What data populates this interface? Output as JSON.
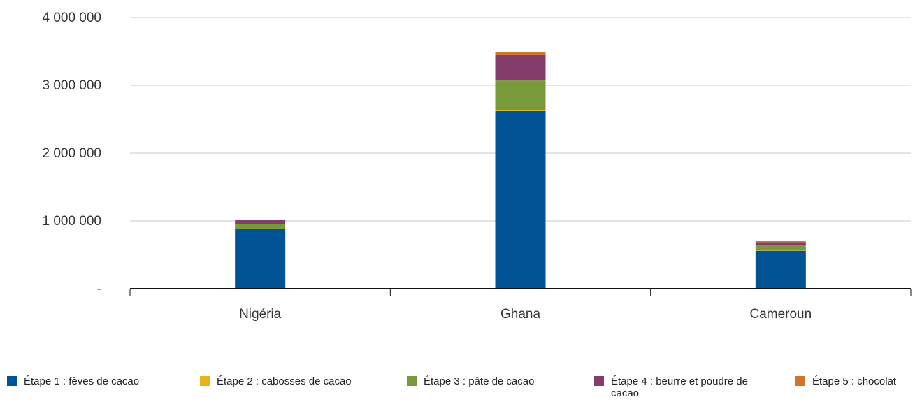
{
  "chart_data": {
    "type": "bar",
    "stacked": true,
    "categories": [
      "Nigéria",
      "Ghana",
      "Cameroun"
    ],
    "series": [
      {
        "name": "Étape 1 : fèves de cacao",
        "color": "#005493",
        "values": [
          880000,
          2620000,
          560000
        ]
      },
      {
        "name": "Étape 2 : cabosses de cacao",
        "color": "#E5B320",
        "values": [
          5000,
          10000,
          5000
        ]
      },
      {
        "name": "Étape 3 : pâte de cacao",
        "color": "#789A3A",
        "values": [
          65000,
          440000,
          75000
        ]
      },
      {
        "name": "Étape 4 : beurre et poudre de cacao",
        "color": "#833C6B",
        "values": [
          65000,
          380000,
          45000
        ]
      },
      {
        "name": "Étape 5 : chocolat",
        "color": "#D3742D",
        "values": [
          0,
          35000,
          25000
        ]
      }
    ],
    "y_ticks": [
      {
        "value": 0,
        "label": "-"
      },
      {
        "value": 1000000,
        "label": "1 000 000"
      },
      {
        "value": 2000000,
        "label": "2 000 000"
      },
      {
        "value": 3000000,
        "label": "3 000 000"
      },
      {
        "value": 4000000,
        "label": "4 000 000"
      }
    ],
    "ylim": [
      0,
      4000000
    ],
    "grid": true,
    "legend_position": "bottom"
  }
}
